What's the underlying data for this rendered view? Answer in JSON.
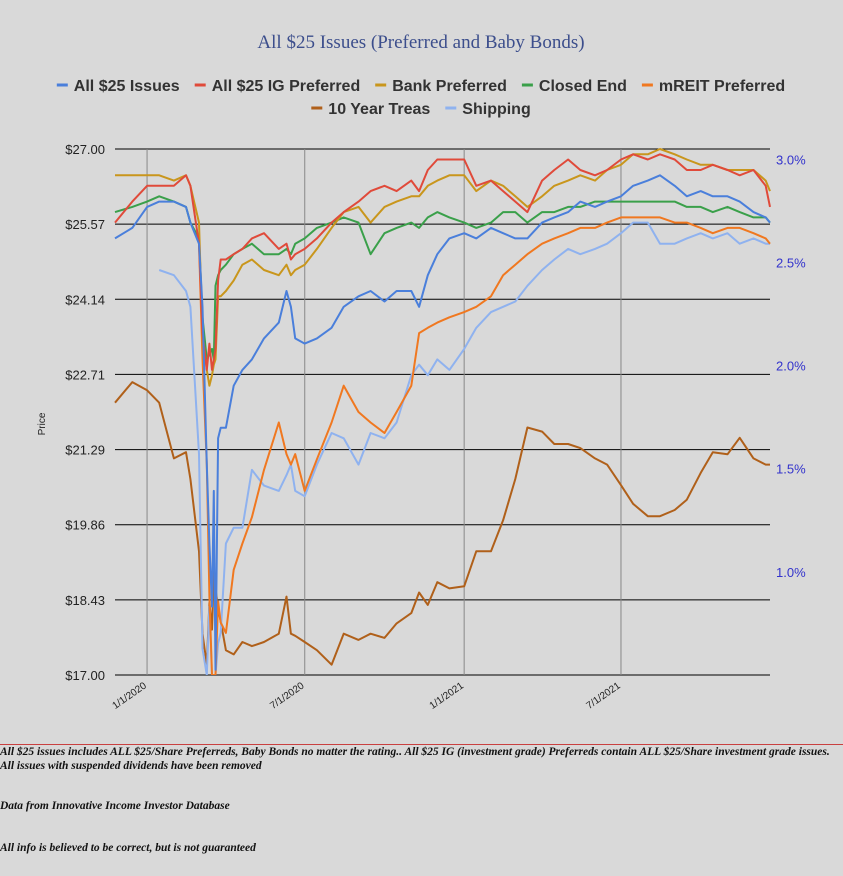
{
  "chart_data": {
    "type": "line",
    "title": "All $25 Issues (Preferred and Baby Bonds)",
    "ylabel": "Price",
    "y_ticks": [
      "$17.00",
      "$18.43",
      "$19.86",
      "$21.29",
      "$22.71",
      "$24.14",
      "$25.57",
      "$27.00"
    ],
    "ylim": [
      17.0,
      27.0
    ],
    "y2_ticks": [
      "1.0%",
      "1.5%",
      "2.0%",
      "2.5%",
      "3.0%"
    ],
    "y2lim": [
      0.5,
      3.05
    ],
    "x_ticks": [
      "1/1/2020",
      "7/1/2020",
      "1/1/2021",
      "7/1/2021"
    ],
    "xlim": [
      "2019-11-25",
      "2021-12-20"
    ],
    "grid": true,
    "legend_position": "top",
    "series": [
      {
        "name": "All $25 Issues",
        "color": "#4a7fdb",
        "axis": "left",
        "x": [
          "2019-11-25",
          "2019-12-15",
          "2020-01-01",
          "2020-01-15",
          "2020-02-01",
          "2020-02-15",
          "2020-02-20",
          "2020-03-01",
          "2020-03-05",
          "2020-03-10",
          "2020-03-13",
          "2020-03-16",
          "2020-03-18",
          "2020-03-20",
          "2020-03-23",
          "2020-03-26",
          "2020-04-01",
          "2020-04-10",
          "2020-04-20",
          "2020-05-01",
          "2020-05-15",
          "2020-06-01",
          "2020-06-10",
          "2020-06-15",
          "2020-06-20",
          "2020-07-01",
          "2020-07-15",
          "2020-08-01",
          "2020-08-15",
          "2020-09-01",
          "2020-09-15",
          "2020-10-01",
          "2020-10-15",
          "2020-11-01",
          "2020-11-10",
          "2020-11-20",
          "2020-12-01",
          "2020-12-15",
          "2021-01-01",
          "2021-01-15",
          "2021-02-01",
          "2021-02-15",
          "2021-03-01",
          "2021-03-15",
          "2021-04-01",
          "2021-04-15",
          "2021-05-01",
          "2021-05-15",
          "2021-06-01",
          "2021-06-15",
          "2021-07-01",
          "2021-07-15",
          "2021-08-01",
          "2021-08-15",
          "2021-09-01",
          "2021-09-15",
          "2021-10-01",
          "2021-10-15",
          "2021-11-01",
          "2021-11-15",
          "2021-12-01",
          "2021-12-15",
          "2021-12-20"
        ],
        "values": [
          25.3,
          25.5,
          25.9,
          26.0,
          26.0,
          25.9,
          25.6,
          25.2,
          24.0,
          21.0,
          19.5,
          18.3,
          20.5,
          17.1,
          21.5,
          21.7,
          21.7,
          22.5,
          22.8,
          23.0,
          23.4,
          23.7,
          24.3,
          24.0,
          23.4,
          23.3,
          23.4,
          23.6,
          24.0,
          24.2,
          24.3,
          24.1,
          24.3,
          24.3,
          24.0,
          24.6,
          25.0,
          25.3,
          25.4,
          25.3,
          25.5,
          25.4,
          25.3,
          25.3,
          25.6,
          25.7,
          25.8,
          26.0,
          25.9,
          26.0,
          26.1,
          26.3,
          26.4,
          26.5,
          26.3,
          26.1,
          26.2,
          26.1,
          26.1,
          26.0,
          25.8,
          25.7,
          25.6
        ]
      },
      {
        "name": "All $25 IG Preferred",
        "color": "#e04a3a",
        "axis": "left",
        "x": [
          "2019-11-25",
          "2019-12-15",
          "2020-01-01",
          "2020-01-15",
          "2020-02-01",
          "2020-02-15",
          "2020-02-20",
          "2020-03-01",
          "2020-03-05",
          "2020-03-10",
          "2020-03-13",
          "2020-03-16",
          "2020-03-18",
          "2020-03-20",
          "2020-03-23",
          "2020-03-26",
          "2020-04-01",
          "2020-04-10",
          "2020-04-20",
          "2020-05-01",
          "2020-05-15",
          "2020-06-01",
          "2020-06-10",
          "2020-06-15",
          "2020-06-20",
          "2020-07-01",
          "2020-07-15",
          "2020-08-01",
          "2020-08-15",
          "2020-09-01",
          "2020-09-15",
          "2020-10-01",
          "2020-10-15",
          "2020-11-01",
          "2020-11-10",
          "2020-11-20",
          "2020-12-01",
          "2020-12-15",
          "2021-01-01",
          "2021-01-15",
          "2021-02-01",
          "2021-02-15",
          "2021-03-01",
          "2021-03-15",
          "2021-04-01",
          "2021-04-15",
          "2021-05-01",
          "2021-05-15",
          "2021-06-01",
          "2021-06-15",
          "2021-07-01",
          "2021-07-15",
          "2021-08-01",
          "2021-08-15",
          "2021-09-01",
          "2021-09-15",
          "2021-10-01",
          "2021-10-15",
          "2021-11-01",
          "2021-11-15",
          "2021-12-01",
          "2021-12-15",
          "2021-12-20"
        ],
        "values": [
          25.6,
          26.0,
          26.3,
          26.3,
          26.3,
          26.5,
          26.3,
          25.2,
          23.5,
          22.8,
          23.3,
          22.8,
          23.0,
          23.2,
          24.5,
          24.9,
          24.9,
          25.0,
          25.1,
          25.3,
          25.4,
          25.1,
          25.2,
          24.9,
          25.0,
          25.1,
          25.3,
          25.6,
          25.8,
          26.0,
          26.2,
          26.3,
          26.2,
          26.4,
          26.2,
          26.6,
          26.8,
          26.8,
          26.8,
          26.3,
          26.4,
          26.2,
          26.0,
          25.8,
          26.4,
          26.6,
          26.8,
          26.6,
          26.5,
          26.6,
          26.8,
          26.9,
          26.8,
          26.9,
          26.8,
          26.6,
          26.6,
          26.7,
          26.6,
          26.5,
          26.6,
          26.3,
          25.9
        ]
      },
      {
        "name": "Bank Preferred",
        "color": "#c9961c",
        "axis": "left",
        "x": [
          "2019-11-25",
          "2019-12-15",
          "2020-01-01",
          "2020-01-15",
          "2020-02-01",
          "2020-02-15",
          "2020-02-20",
          "2020-03-01",
          "2020-03-05",
          "2020-03-10",
          "2020-03-13",
          "2020-03-16",
          "2020-03-18",
          "2020-03-20",
          "2020-03-23",
          "2020-03-26",
          "2020-04-01",
          "2020-04-10",
          "2020-04-20",
          "2020-05-01",
          "2020-05-15",
          "2020-06-01",
          "2020-06-10",
          "2020-06-15",
          "2020-06-20",
          "2020-07-01",
          "2020-07-15",
          "2020-08-01",
          "2020-08-15",
          "2020-09-01",
          "2020-09-15",
          "2020-10-01",
          "2020-10-15",
          "2020-11-01",
          "2020-11-10",
          "2020-11-20",
          "2020-12-01",
          "2020-12-15",
          "2021-01-01",
          "2021-01-15",
          "2021-02-01",
          "2021-02-15",
          "2021-03-01",
          "2021-03-15",
          "2021-04-01",
          "2021-04-15",
          "2021-05-01",
          "2021-05-15",
          "2021-06-01",
          "2021-06-15",
          "2021-07-01",
          "2021-07-15",
          "2021-08-01",
          "2021-08-15",
          "2021-09-01",
          "2021-09-15",
          "2021-10-01",
          "2021-10-15",
          "2021-11-01",
          "2021-11-15",
          "2021-12-01",
          "2021-12-15",
          "2021-12-20"
        ],
        "values": [
          26.5,
          26.5,
          26.5,
          26.5,
          26.4,
          26.5,
          26.3,
          25.6,
          23.5,
          22.8,
          22.5,
          22.7,
          22.9,
          23.0,
          24.2,
          24.2,
          24.3,
          24.5,
          24.8,
          24.9,
          24.7,
          24.6,
          24.8,
          24.6,
          24.7,
          24.8,
          25.1,
          25.5,
          25.8,
          25.9,
          25.6,
          25.9,
          26.0,
          26.1,
          26.1,
          26.3,
          26.4,
          26.5,
          26.5,
          26.2,
          26.4,
          26.3,
          26.1,
          25.9,
          26.1,
          26.3,
          26.4,
          26.5,
          26.4,
          26.6,
          26.7,
          26.9,
          26.9,
          27.0,
          26.9,
          26.8,
          26.7,
          26.7,
          26.6,
          26.6,
          26.6,
          26.4,
          26.2
        ]
      },
      {
        "name": "Closed End",
        "color": "#3aa04a",
        "axis": "left",
        "x": [
          "2019-11-25",
          "2019-12-15",
          "2020-01-01",
          "2020-01-15",
          "2020-02-01",
          "2020-02-15",
          "2020-02-20",
          "2020-03-01",
          "2020-03-05",
          "2020-03-10",
          "2020-03-13",
          "2020-03-16",
          "2020-03-18",
          "2020-03-20",
          "2020-03-23",
          "2020-03-26",
          "2020-04-01",
          "2020-04-10",
          "2020-04-20",
          "2020-05-01",
          "2020-05-15",
          "2020-06-01",
          "2020-06-10",
          "2020-06-15",
          "2020-06-20",
          "2020-07-01",
          "2020-07-15",
          "2020-08-01",
          "2020-08-15",
          "2020-09-01",
          "2020-09-15",
          "2020-10-01",
          "2020-10-15",
          "2020-11-01",
          "2020-11-10",
          "2020-11-20",
          "2020-12-01",
          "2020-12-15",
          "2021-01-01",
          "2021-01-15",
          "2021-02-01",
          "2021-02-15",
          "2021-03-01",
          "2021-03-15",
          "2021-04-01",
          "2021-04-15",
          "2021-05-01",
          "2021-05-15",
          "2021-06-01",
          "2021-06-15",
          "2021-07-01",
          "2021-07-15",
          "2021-08-01",
          "2021-08-15",
          "2021-09-01",
          "2021-09-15",
          "2021-10-01",
          "2021-10-15",
          "2021-11-01",
          "2021-11-15",
          "2021-12-01",
          "2021-12-15",
          "2021-12-20"
        ],
        "values": [
          25.8,
          25.9,
          26.0,
          26.1,
          26.0,
          25.9,
          25.6,
          25.3,
          23.8,
          23.0,
          23.1,
          23.2,
          23.0,
          24.4,
          24.6,
          24.7,
          24.8,
          25.0,
          25.1,
          25.2,
          25.0,
          25.0,
          25.1,
          25.0,
          25.2,
          25.3,
          25.5,
          25.6,
          25.7,
          25.6,
          25.0,
          25.4,
          25.5,
          25.6,
          25.5,
          25.7,
          25.8,
          25.7,
          25.6,
          25.5,
          25.6,
          25.8,
          25.8,
          25.6,
          25.8,
          25.8,
          25.9,
          25.9,
          26.0,
          26.0,
          26.0,
          26.0,
          26.0,
          26.0,
          26.0,
          25.9,
          25.9,
          25.8,
          25.9,
          25.8,
          25.7,
          25.7,
          25.6
        ]
      },
      {
        "name": "mREIT Preferred",
        "color": "#f07820",
        "axis": "left",
        "x": [
          "2020-03-01",
          "2020-03-05",
          "2020-03-10",
          "2020-03-13",
          "2020-03-16",
          "2020-03-18",
          "2020-03-20",
          "2020-03-23",
          "2020-03-26",
          "2020-04-01",
          "2020-04-10",
          "2020-04-20",
          "2020-05-01",
          "2020-05-15",
          "2020-06-01",
          "2020-06-10",
          "2020-06-15",
          "2020-06-20",
          "2020-07-01",
          "2020-07-15",
          "2020-08-01",
          "2020-08-15",
          "2020-09-01",
          "2020-09-15",
          "2020-10-01",
          "2020-10-15",
          "2020-11-01",
          "2020-11-10",
          "2020-11-20",
          "2020-12-01",
          "2020-12-15",
          "2021-01-01",
          "2021-01-15",
          "2021-02-01",
          "2021-02-15",
          "2021-03-01",
          "2021-03-15",
          "2021-04-01",
          "2021-04-15",
          "2021-05-01",
          "2021-05-15",
          "2021-06-01",
          "2021-06-15",
          "2021-07-01",
          "2021-07-15",
          "2021-08-01",
          "2021-08-15",
          "2021-09-01",
          "2021-09-15",
          "2021-10-01",
          "2021-10-15",
          "2021-11-01",
          "2021-11-15",
          "2021-12-01",
          "2021-12-15",
          "2021-12-20"
        ],
        "values": [
          25.2,
          23.0,
          21.0,
          18.5,
          17.0,
          17.0,
          17.0,
          18.4,
          18.0,
          17.8,
          19.0,
          19.5,
          20.0,
          20.9,
          21.8,
          21.2,
          21.0,
          21.2,
          20.5,
          21.1,
          21.8,
          22.5,
          22.0,
          21.8,
          21.6,
          22.0,
          22.5,
          23.5,
          23.6,
          23.7,
          23.8,
          23.9,
          24.0,
          24.2,
          24.6,
          24.8,
          25.0,
          25.2,
          25.3,
          25.4,
          25.5,
          25.5,
          25.6,
          25.7,
          25.7,
          25.7,
          25.7,
          25.6,
          25.6,
          25.5,
          25.4,
          25.5,
          25.5,
          25.4,
          25.3,
          25.2
        ]
      },
      {
        "name": "10 Year Treas",
        "color": "#b0601a",
        "axis": "right",
        "x": [
          "2019-11-25",
          "2019-12-15",
          "2020-01-01",
          "2020-01-15",
          "2020-02-01",
          "2020-02-15",
          "2020-02-20",
          "2020-03-01",
          "2020-03-05",
          "2020-03-10",
          "2020-03-13",
          "2020-03-16",
          "2020-03-18",
          "2020-03-20",
          "2020-03-23",
          "2020-03-26",
          "2020-04-01",
          "2020-04-10",
          "2020-04-20",
          "2020-05-01",
          "2020-05-15",
          "2020-06-01",
          "2020-06-10",
          "2020-06-15",
          "2020-06-20",
          "2020-07-01",
          "2020-07-15",
          "2020-08-01",
          "2020-08-15",
          "2020-09-01",
          "2020-09-15",
          "2020-10-01",
          "2020-10-15",
          "2020-11-01",
          "2020-11-10",
          "2020-11-20",
          "2020-12-01",
          "2020-12-15",
          "2021-01-01",
          "2021-01-15",
          "2021-02-01",
          "2021-02-15",
          "2021-03-01",
          "2021-03-15",
          "2021-04-01",
          "2021-04-15",
          "2021-05-01",
          "2021-05-15",
          "2021-06-01",
          "2021-06-15",
          "2021-07-01",
          "2021-07-15",
          "2021-08-01",
          "2021-08-15",
          "2021-09-01",
          "2021-09-15",
          "2021-10-01",
          "2021-10-15",
          "2021-11-01",
          "2021-11-15",
          "2021-12-01",
          "2021-12-15",
          "2021-12-20"
        ],
        "values": [
          1.82,
          1.92,
          1.88,
          1.82,
          1.55,
          1.58,
          1.45,
          1.1,
          0.7,
          0.55,
          0.85,
          0.72,
          1.0,
          0.92,
          0.82,
          0.76,
          0.62,
          0.6,
          0.66,
          0.64,
          0.66,
          0.7,
          0.88,
          0.7,
          0.69,
          0.66,
          0.62,
          0.55,
          0.7,
          0.67,
          0.7,
          0.68,
          0.75,
          0.8,
          0.9,
          0.84,
          0.95,
          0.92,
          0.93,
          1.1,
          1.1,
          1.25,
          1.45,
          1.7,
          1.68,
          1.62,
          1.62,
          1.6,
          1.55,
          1.52,
          1.42,
          1.33,
          1.27,
          1.27,
          1.3,
          1.35,
          1.48,
          1.58,
          1.57,
          1.65,
          1.55,
          1.52,
          1.52
        ]
      },
      {
        "name": "Shipping",
        "color": "#8fb2ef",
        "axis": "left",
        "x": [
          "2020-01-15",
          "2020-02-01",
          "2020-02-15",
          "2020-02-20",
          "2020-03-01",
          "2020-03-05",
          "2020-03-10",
          "2020-03-13",
          "2020-03-16",
          "2020-03-18",
          "2020-03-20",
          "2020-03-23",
          "2020-03-26",
          "2020-04-01",
          "2020-04-10",
          "2020-04-20",
          "2020-05-01",
          "2020-05-15",
          "2020-06-01",
          "2020-06-10",
          "2020-06-15",
          "2020-06-20",
          "2020-07-01",
          "2020-07-15",
          "2020-08-01",
          "2020-08-15",
          "2020-09-01",
          "2020-09-15",
          "2020-10-01",
          "2020-10-15",
          "2020-11-01",
          "2020-11-10",
          "2020-11-20",
          "2020-12-01",
          "2020-12-15",
          "2021-01-01",
          "2021-01-15",
          "2021-02-01",
          "2021-02-15",
          "2021-03-01",
          "2021-03-15",
          "2021-04-01",
          "2021-04-15",
          "2021-05-01",
          "2021-05-15",
          "2021-06-01",
          "2021-06-15",
          "2021-07-01",
          "2021-07-15",
          "2021-08-01",
          "2021-08-15",
          "2021-09-01",
          "2021-09-15",
          "2021-10-01",
          "2021-10-15",
          "2021-11-01",
          "2021-11-15",
          "2021-12-01",
          "2021-12-15",
          "2021-12-20"
        ],
        "values": [
          24.7,
          24.6,
          24.3,
          24.0,
          21.2,
          17.5,
          17.0,
          18.3,
          17.0,
          17.0,
          17.0,
          17.6,
          17.8,
          19.5,
          19.8,
          19.8,
          20.9,
          20.6,
          20.5,
          20.8,
          21.0,
          20.5,
          20.4,
          21.0,
          21.6,
          21.5,
          21.0,
          21.6,
          21.5,
          21.8,
          22.7,
          22.9,
          22.7,
          23.0,
          22.8,
          23.2,
          23.6,
          23.9,
          24.0,
          24.1,
          24.4,
          24.7,
          24.9,
          25.1,
          25.0,
          25.1,
          25.2,
          25.4,
          25.6,
          25.6,
          25.2,
          25.2,
          25.3,
          25.4,
          25.3,
          25.4,
          25.2,
          25.3,
          25.2,
          25.2
        ]
      }
    ]
  },
  "footnotes": {
    "note1": "All $25 issues includes ALL $25/Share Preferreds, Baby Bonds no matter the rating..  All $25 IG (investment grade) Preferreds contain ALL $25/Share investment grade issues.  All issues with suspended dividends have been removed",
    "note2": "Data from Innovative Income Investor Database",
    "note3": "All info is believed to be correct, but is not guaranteed"
  }
}
